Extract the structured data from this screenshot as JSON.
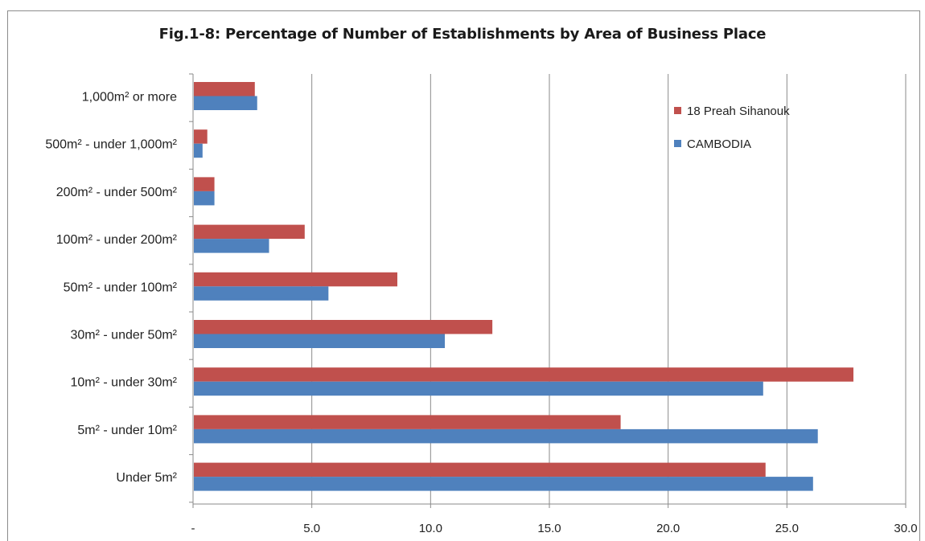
{
  "chart_data": {
    "type": "bar",
    "orientation": "horizontal",
    "title": "Fig.1-8: Percentage of Number of Establishments by Area of Business Place",
    "categories": [
      "1,000m² or more",
      "500m² - under 1,000m²",
      "200m² - under 500m²",
      "100m² - under 200m²",
      "50m² - under 100m²",
      "30m² - under 50m²",
      "10m² - under 30m²",
      "5m² - under 10m²",
      "Under 5m²"
    ],
    "series": [
      {
        "name": "18 Preah Sihanouk",
        "color": "#c0504d",
        "values": [
          2.6,
          0.6,
          0.9,
          4.7,
          8.6,
          12.6,
          27.8,
          18.0,
          24.1
        ]
      },
      {
        "name": "CAMBODIA",
        "color": "#4f81bd",
        "values": [
          2.7,
          0.4,
          0.9,
          3.2,
          5.7,
          10.6,
          24.0,
          26.3,
          26.1
        ]
      }
    ],
    "xlim": [
      0,
      30
    ],
    "x_ticks": [
      "-",
      "5.0",
      "10.0",
      "15.0",
      "20.0",
      "25.0",
      "30.0"
    ],
    "grid": "vertical major gridlines",
    "legend": "top-right"
  }
}
